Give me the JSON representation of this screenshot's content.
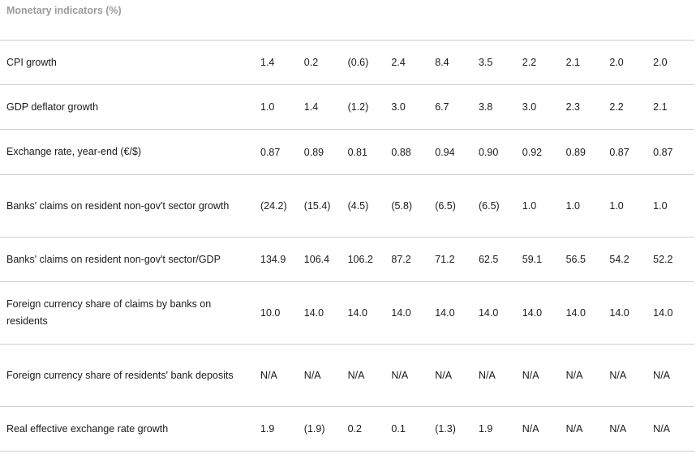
{
  "title": "Monetary indicators (%)",
  "rows": [
    {
      "label": "CPI growth",
      "values": [
        "1.4",
        "0.2",
        "(0.6)",
        "2.4",
        "8.4",
        "3.5",
        "2.2",
        "2.1",
        "2.0",
        "2.0"
      ]
    },
    {
      "label": "GDP deflator growth",
      "values": [
        "1.0",
        "1.4",
        "(1.2)",
        "3.0",
        "6.7",
        "3.8",
        "3.0",
        "2.3",
        "2.2",
        "2.1"
      ]
    },
    {
      "label": "Exchange rate, year-end (€/$)",
      "values": [
        "0.87",
        "0.89",
        "0.81",
        "0.88",
        "0.94",
        "0.90",
        "0.92",
        "0.89",
        "0.87",
        "0.87"
      ]
    },
    {
      "label": "Banks' claims on resident non-gov't sector growth",
      "values": [
        "(24.2)",
        "(15.4)",
        "(4.5)",
        "(5.8)",
        "(6.5)",
        "(6.5)",
        "1.0",
        "1.0",
        "1.0",
        "1.0"
      ]
    },
    {
      "label": "Banks' claims on resident non-gov't sector/GDP",
      "values": [
        "134.9",
        "106.4",
        "106.2",
        "87.2",
        "71.2",
        "62.5",
        "59.1",
        "56.5",
        "54.2",
        "52.2"
      ]
    },
    {
      "label": "Foreign currency share of claims by banks on residents",
      "values": [
        "10.0",
        "14.0",
        "14.0",
        "14.0",
        "14.0",
        "14.0",
        "14.0",
        "14.0",
        "14.0",
        "14.0"
      ]
    },
    {
      "label": "Foreign currency share of residents' bank deposits",
      "values": [
        "N/A",
        "N/A",
        "N/A",
        "N/A",
        "N/A",
        "N/A",
        "N/A",
        "N/A",
        "N/A",
        "N/A"
      ]
    },
    {
      "label": "Real effective exchange rate growth",
      "values": [
        "1.9",
        "(1.9)",
        "0.2",
        "0.1",
        "(1.3)",
        "1.9",
        "N/A",
        "N/A",
        "N/A",
        "N/A"
      ]
    }
  ]
}
